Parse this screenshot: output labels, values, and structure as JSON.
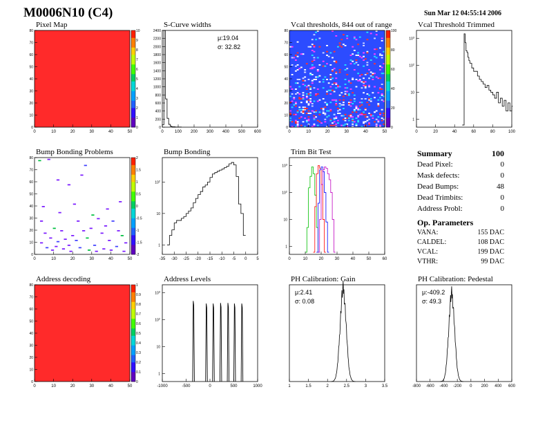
{
  "header": {
    "title": "M0006N10 (C4)",
    "date": "Sun Mar 12 04:55:14 2006"
  },
  "panel_titles": {
    "pixel_map": "Pixel Map",
    "scurve": "S-Curve widths",
    "vcal_thr": "Vcal thresholds, 844 out of range",
    "vcal_trim": "Vcal Threshold Trimmed",
    "bump_problems": "Bump Bonding Problems",
    "bump_bonding": "Bump Bonding",
    "trim_bit": "Trim Bit Test",
    "address_decoding": "Address decoding",
    "address_levels": "Address Levels",
    "ph_gain": "PH Calibration: Gain",
    "ph_ped": "PH Calibration: Pedestal"
  },
  "summary": {
    "title": "Summary",
    "title_value": "100",
    "rows": [
      {
        "label": "Dead Pixel:",
        "value": "0"
      },
      {
        "label": "Mask defects:",
        "value": "0"
      },
      {
        "label": "Dead Bumps:",
        "value": "48"
      },
      {
        "label": "Dead Trimbits:",
        "value": "0"
      },
      {
        "label": "Address Probl:",
        "value": "0"
      }
    ],
    "op_title": "Op. Parameters",
    "op_rows": [
      {
        "label": "VANA:",
        "value": "155 DAC"
      },
      {
        "label": "CALDEL:",
        "value": "108 DAC"
      },
      {
        "label": "VCAL:",
        "value": "199 DAC"
      },
      {
        "label": "VTHR:",
        "value": "99 DAC"
      }
    ]
  },
  "chart_data": [
    {
      "id": "pixel_map",
      "type": "heatmap",
      "title": "Pixel Map",
      "xlim": [
        0,
        52
      ],
      "ylim": [
        0,
        80
      ],
      "xticks": [
        "0",
        "10",
        "20",
        "30",
        "40",
        "50"
      ],
      "yticks": [
        "0",
        "10",
        "20",
        "30",
        "40",
        "50",
        "60",
        "70",
        "80"
      ],
      "zticks": [
        "0",
        "1",
        "2",
        "3",
        "4",
        "5",
        "6",
        "7",
        "8",
        "9",
        "10"
      ],
      "fill_color": "#ff2a2a",
      "uniform_value": 10
    },
    {
      "id": "scurve",
      "type": "bar",
      "title": "S-Curve widths",
      "xlim": [
        0,
        600
      ],
      "ylim": [
        0,
        2400
      ],
      "xticks": [
        "0",
        "100",
        "200",
        "300",
        "400",
        "500",
        "600"
      ],
      "yticks": [
        "0",
        "200",
        "400",
        "600",
        "800",
        "1000",
        "1200",
        "1400",
        "1600",
        "1800",
        "2000",
        "2200",
        "2400"
      ],
      "mean_label": "μ:19.04",
      "sigma_label": "σ: 32.82",
      "bins": [
        [
          0,
          10,
          60
        ],
        [
          10,
          20,
          2400
        ],
        [
          20,
          30,
          700
        ],
        [
          30,
          40,
          220
        ],
        [
          40,
          50,
          70
        ],
        [
          50,
          60,
          25
        ],
        [
          60,
          80,
          10
        ],
        [
          80,
          120,
          4
        ]
      ]
    },
    {
      "id": "vcal_thr",
      "type": "heatmap",
      "title": "Vcal thresholds, 844 out of range",
      "xlim": [
        0,
        52
      ],
      "ylim": [
        0,
        80
      ],
      "xticks": [
        "0",
        "10",
        "20",
        "30",
        "40",
        "50"
      ],
      "yticks": [
        "0",
        "10",
        "20",
        "30",
        "40",
        "50",
        "60",
        "70",
        "80"
      ],
      "zticks": [
        "0",
        "20",
        "40",
        "60",
        "80",
        "100"
      ],
      "base_color": "#2c4cff",
      "speckle_colors": [
        "#ffffff",
        "#d0d8ff",
        "#ff3030",
        "#ff40ff",
        "#20e0ff"
      ]
    },
    {
      "id": "vcal_trim",
      "type": "line",
      "title": "Vcal Threshold Trimmed",
      "xlim": [
        0,
        100
      ],
      "ylim_log": [
        0.5,
        2000
      ],
      "xticks": [
        "0",
        "20",
        "40",
        "60",
        "80",
        "100"
      ],
      "x": [
        48,
        50,
        51,
        52,
        53,
        54,
        55,
        56,
        58,
        60,
        62,
        64,
        66,
        68,
        70,
        72,
        74,
        76,
        78,
        80,
        82,
        84,
        86,
        88,
        90,
        92,
        94,
        96,
        98,
        100
      ],
      "y": [
        0.6,
        1500,
        700,
        350,
        300,
        200,
        150,
        120,
        80,
        60,
        60,
        40,
        30,
        25,
        20,
        15,
        18,
        12,
        10,
        8,
        6,
        10,
        4,
        6,
        3,
        5,
        2,
        4,
        2,
        3
      ]
    },
    {
      "id": "bump_problems",
      "type": "scatter",
      "title": "Bump Bonding Problems",
      "xlim": [
        0,
        52
      ],
      "ylim": [
        0,
        80
      ],
      "xticks": [
        "0",
        "10",
        "20",
        "30",
        "40",
        "50"
      ],
      "yticks": [
        "0",
        "10",
        "20",
        "30",
        "40",
        "50",
        "60",
        "70",
        "80"
      ],
      "zticks": [
        "-2",
        "-1.5",
        "-1",
        "-0.5",
        "0",
        "0.5",
        "1",
        "1.5",
        "2"
      ],
      "points": [
        [
          2,
          78
        ],
        [
          7,
          79
        ],
        [
          12,
          62
        ],
        [
          18,
          58
        ],
        [
          25,
          66
        ],
        [
          27,
          74
        ],
        [
          3,
          28
        ],
        [
          5,
          18
        ],
        [
          8,
          14
        ],
        [
          10,
          22
        ],
        [
          12,
          11
        ],
        [
          14,
          20
        ],
        [
          16,
          13
        ],
        [
          18,
          8
        ],
        [
          20,
          16
        ],
        [
          22,
          12
        ],
        [
          23,
          28
        ],
        [
          26,
          20
        ],
        [
          28,
          14
        ],
        [
          30,
          22
        ],
        [
          32,
          8
        ],
        [
          34,
          30
        ],
        [
          36,
          18
        ],
        [
          38,
          24
        ],
        [
          40,
          12
        ],
        [
          42,
          28
        ],
        [
          45,
          20
        ],
        [
          47,
          16
        ],
        [
          49,
          10
        ],
        [
          3,
          10
        ],
        [
          6,
          6
        ],
        [
          9,
          4
        ],
        [
          11,
          7
        ],
        [
          15,
          5
        ],
        [
          19,
          3
        ],
        [
          24,
          6
        ],
        [
          29,
          4
        ],
        [
          33,
          3
        ],
        [
          37,
          5
        ],
        [
          41,
          4
        ],
        [
          44,
          7
        ],
        [
          48,
          3
        ],
        [
          4,
          40
        ],
        [
          13,
          35
        ],
        [
          21,
          42
        ],
        [
          31,
          33
        ],
        [
          39,
          38
        ],
        [
          46,
          44
        ]
      ]
    },
    {
      "id": "bump_bonding",
      "type": "line",
      "title": "Bump Bonding",
      "xlim": [
        -35,
        5
      ],
      "ylim_log": [
        0.5,
        600
      ],
      "xticks": [
        "-35",
        "-30",
        "-25",
        "-20",
        "-15",
        "-10",
        "-5",
        "0",
        "5"
      ],
      "x": [
        -33,
        -32,
        -31,
        -30,
        -29,
        -28,
        -27,
        -26,
        -25,
        -24,
        -23,
        -22,
        -21,
        -20,
        -19,
        -18,
        -17,
        -16,
        -15,
        -14,
        -13,
        -12,
        -11,
        -10,
        -9,
        -8,
        -7,
        -6,
        -5,
        -4,
        -3,
        -2,
        -1
      ],
      "y": [
        1,
        2,
        3,
        5,
        6,
        6,
        7,
        8,
        10,
        12,
        15,
        22,
        30,
        40,
        50,
        70,
        80,
        100,
        140,
        180,
        200,
        220,
        240,
        260,
        290,
        320,
        380,
        420,
        350,
        150,
        20,
        10,
        2
      ]
    },
    {
      "id": "trim_bit",
      "type": "line",
      "title": "Trim Bit Test",
      "xlim": [
        0,
        60
      ],
      "ylim_log": [
        0.5,
        2000
      ],
      "xticks": [
        "0",
        "10",
        "20",
        "30",
        "40",
        "50",
        "60"
      ],
      "series": [
        {
          "color": "#00c000",
          "x": [
            10,
            11,
            12,
            13,
            14,
            15,
            16,
            17,
            18
          ],
          "y": [
            0.6,
            5,
            150,
            400,
            900,
            500,
            80,
            5,
            0.6
          ]
        },
        {
          "color": "#ff0000",
          "x": [
            15,
            16,
            17,
            18,
            19,
            20,
            21,
            22
          ],
          "y": [
            0.6,
            30,
            500,
            1000,
            800,
            200,
            10,
            0.6
          ]
        },
        {
          "color": "#0000ff",
          "x": [
            17,
            18,
            19,
            20,
            21,
            22,
            23,
            24
          ],
          "y": [
            0.6,
            40,
            700,
            900,
            600,
            100,
            8,
            0.6
          ]
        },
        {
          "color": "#c000c0",
          "x": [
            18,
            19,
            20,
            21,
            22,
            23,
            24,
            25,
            26,
            27,
            28
          ],
          "y": [
            0.6,
            10,
            200,
            700,
            900,
            800,
            500,
            300,
            100,
            10,
            0.6
          ]
        }
      ]
    },
    {
      "id": "address_decoding",
      "type": "heatmap",
      "title": "Address decoding",
      "xlim": [
        0,
        52
      ],
      "ylim": [
        0,
        80
      ],
      "xticks": [
        "0",
        "10",
        "20",
        "30",
        "40",
        "50"
      ],
      "yticks": [
        "0",
        "10",
        "20",
        "30",
        "40",
        "50",
        "60",
        "70",
        "80"
      ],
      "zticks": [
        "0",
        "0.1",
        "0.2",
        "0.3",
        "0.4",
        "0.5",
        "0.6",
        "0.7",
        "0.8",
        "0.9",
        "1"
      ],
      "fill_color": "#ff2a2a",
      "uniform_value": 1
    },
    {
      "id": "address_levels",
      "type": "line",
      "title": "Address Levels",
      "xlim": [
        -1200,
        1000
      ],
      "ylim_log": [
        0.5,
        2000
      ],
      "xticks": [
        "-1000",
        "-500",
        "0",
        "500",
        "1000"
      ],
      "peaks": [
        [
          -480,
          500
        ],
        [
          -180,
          400
        ],
        [
          -20,
          400
        ],
        [
          150,
          420
        ],
        [
          320,
          420
        ],
        [
          470,
          400
        ],
        [
          640,
          400
        ]
      ]
    },
    {
      "id": "ph_gain",
      "type": "line",
      "title": "PH Calibration: Gain",
      "xlim": [
        1,
        3.5
      ],
      "ylim": [
        0,
        500
      ],
      "xticks": [
        "1",
        "1.5",
        "2",
        "2.5",
        "3",
        "3.5"
      ],
      "mean_label": "μ:2.41",
      "sigma_label": "σ: 0.08",
      "mu": 2.41,
      "sigma": 0.08,
      "peak": 480
    },
    {
      "id": "ph_ped",
      "type": "line",
      "title": "PH Calibration: Pedestal",
      "xlim": [
        -1000,
        600
      ],
      "ylim": [
        0,
        1100
      ],
      "xticks": [
        "-800",
        "-600",
        "-400",
        "-200",
        "0",
        "200",
        "400",
        "600"
      ],
      "mean_label": "μ:-409.2",
      "sigma_label": "σ: 49.3",
      "mu": -409.2,
      "sigma": 49.3,
      "peak": 1000
    }
  ]
}
